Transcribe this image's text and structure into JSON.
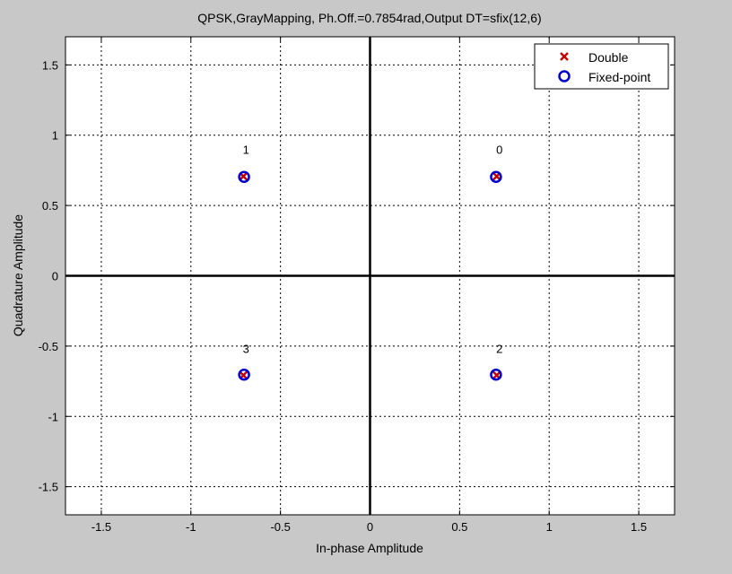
{
  "chart_data": {
    "type": "scatter",
    "title": "QPSK,GrayMapping, Ph.Off.=0.7854rad,Output DT=sfix(12,6)",
    "xlabel": "In-phase Amplitude",
    "ylabel": "Quadrature Amplitude",
    "xlim": [
      -1.7,
      1.7
    ],
    "ylim": [
      -1.7,
      1.7
    ],
    "xticks": [
      -1.5,
      -1,
      -0.5,
      0,
      0.5,
      1,
      1.5
    ],
    "xtick_labels": [
      "-1.5",
      "-1",
      "-0.5",
      "0",
      "0.5",
      "1",
      "1.5"
    ],
    "yticks": [
      -1.5,
      -1,
      -0.5,
      0,
      0.5,
      1,
      1.5
    ],
    "ytick_labels": [
      "-1.5",
      "-1",
      "-0.5",
      "0",
      "0.5",
      "1",
      "1.5"
    ],
    "grid": true,
    "grid_style": "dotted",
    "legend_position": "top-right",
    "series": [
      {
        "name": "Double",
        "marker": "x",
        "color": "#c00000",
        "points": [
          {
            "x": 0.7071,
            "y": 0.7071
          },
          {
            "x": -0.7071,
            "y": 0.7071
          },
          {
            "x": 0.7071,
            "y": -0.7071
          },
          {
            "x": -0.7071,
            "y": -0.7071
          }
        ]
      },
      {
        "name": "Fixed-point",
        "marker": "o",
        "color": "#0000cc",
        "points": [
          {
            "x": 0.7031,
            "y": 0.7031
          },
          {
            "x": -0.7031,
            "y": 0.7031
          },
          {
            "x": 0.7031,
            "y": -0.7031
          },
          {
            "x": -0.7031,
            "y": -0.7031
          }
        ]
      }
    ],
    "point_labels": [
      {
        "text": "0",
        "x": 0.7071,
        "y": 0.7071
      },
      {
        "text": "1",
        "x": -0.7071,
        "y": 0.7071
      },
      {
        "text": "2",
        "x": 0.7071,
        "y": -0.7071
      },
      {
        "text": "3",
        "x": -0.7071,
        "y": -0.7071
      }
    ]
  }
}
